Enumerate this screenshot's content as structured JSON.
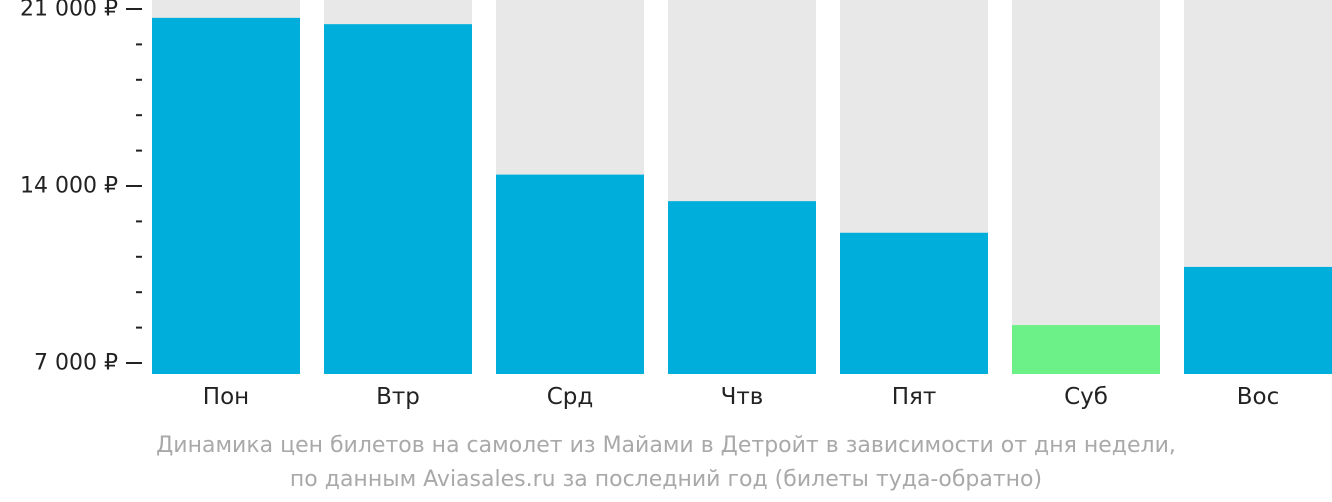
{
  "chart_data": {
    "type": "bar",
    "categories": [
      "Пон",
      "Втр",
      "Срд",
      "Чтв",
      "Пят",
      "Суб",
      "Вос"
    ],
    "values": [
      20650,
      20400,
      14450,
      13400,
      12150,
      8500,
      10800
    ],
    "highlight_index": 5,
    "ylim": [
      7000,
      21000
    ],
    "yticks": [
      {
        "value": 21000,
        "label": "21 000 ₽"
      },
      {
        "value": 14000,
        "label": "14 000 ₽"
      },
      {
        "value": 7000,
        "label": "7 000 ₽"
      }
    ],
    "minor_tick_step": 1400,
    "colors": {
      "bar": "#00AEDB",
      "highlight": "#6CF088",
      "track": "#E8E8E8",
      "axis_text": "#222222",
      "caption": "#A9A9A9"
    },
    "caption": [
      "Динамика цен билетов на самолет из Майами в Детройт в зависимости от дня недели,",
      "по данным Aviasales.ru за последний год (билеты туда-обратно)"
    ]
  }
}
